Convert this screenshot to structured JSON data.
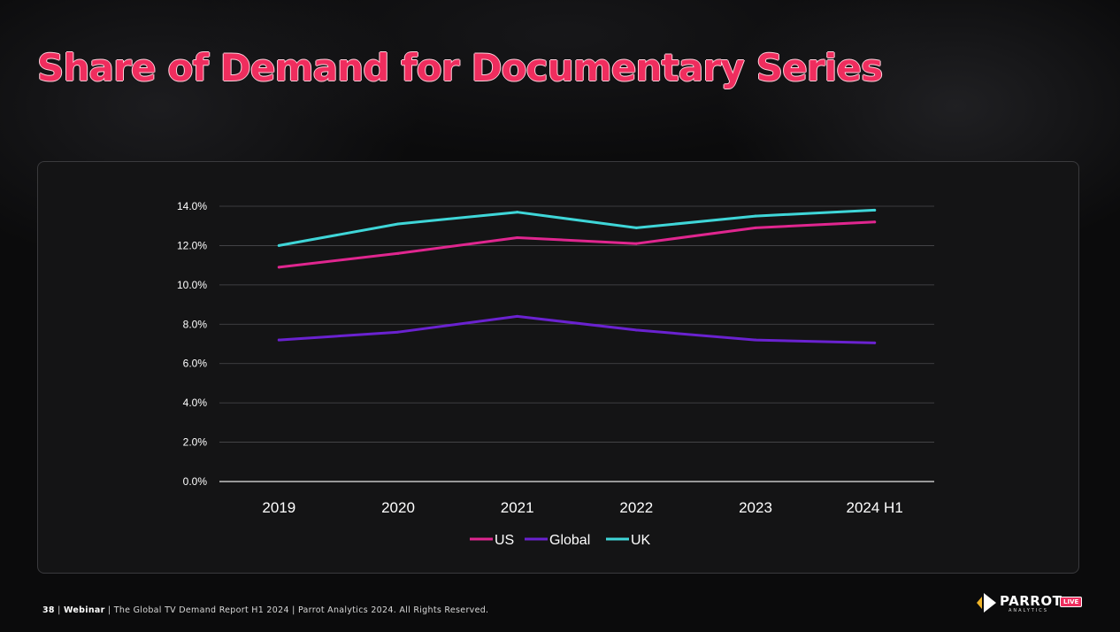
{
  "slide": {
    "title": "Share of Demand for Documentary Series"
  },
  "footer": {
    "page": "38",
    "section": "Webinar",
    "report": "The Global TV Demand Report H1 2024",
    "copyright": "Parrot Analytics 2024. All Rights Reserved."
  },
  "logo": {
    "name": "PARROT",
    "sub": "ANALYTICS",
    "badge": "LIVE"
  },
  "colors": {
    "title": "#ef2d5e",
    "US": "#e0268f",
    "Global": "#6a22d0",
    "UK": "#3fd6d8",
    "grid": "#4a4a4e",
    "axis_text": "#ffffff"
  },
  "chart_data": {
    "type": "line",
    "title": "",
    "xlabel": "",
    "ylabel": "",
    "categories": [
      "2019",
      "2020",
      "2021",
      "2022",
      "2023",
      "2024 H1"
    ],
    "ylim": [
      0,
      14
    ],
    "yticks": [
      "0.0%",
      "2.0%",
      "4.0%",
      "6.0%",
      "8.0%",
      "10.0%",
      "12.0%",
      "14.0%"
    ],
    "grid": true,
    "legend": "bottom-center",
    "series": [
      {
        "name": "US",
        "values": [
          10.9,
          11.6,
          12.4,
          12.1,
          12.9,
          13.2
        ]
      },
      {
        "name": "Global",
        "values": [
          7.2,
          7.6,
          8.4,
          7.7,
          7.2,
          7.05
        ]
      },
      {
        "name": "UK",
        "values": [
          12.0,
          13.1,
          13.7,
          12.9,
          13.5,
          13.8
        ]
      }
    ]
  }
}
